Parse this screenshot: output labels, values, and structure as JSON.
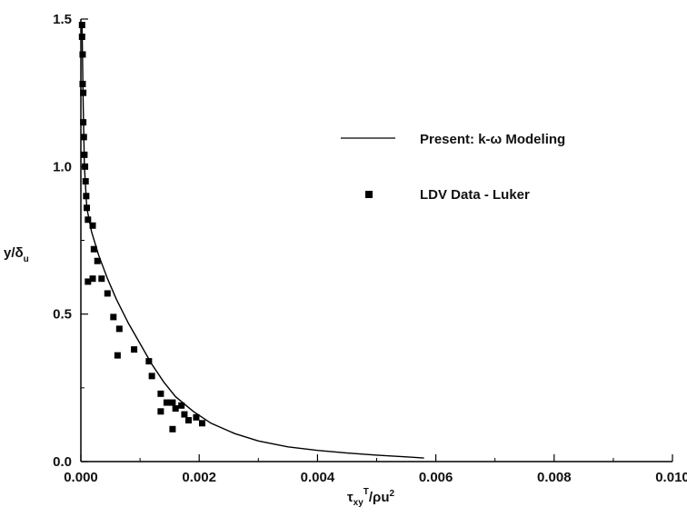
{
  "chart_data": {
    "type": "scatter",
    "xlabel": {
      "base": "τ",
      "sub": "xy",
      "sup": "T",
      "rest": "/ρu",
      "sup2": "2"
    },
    "ylabel": {
      "base": "y/δ",
      "sub": "u"
    },
    "xlim": [
      0.0,
      0.01
    ],
    "ylim": [
      0.0,
      1.5
    ],
    "x_ticks": [
      "0.000",
      "0.002",
      "0.004",
      "0.006",
      "0.008",
      "0.010"
    ],
    "y_ticks": [
      "0.0",
      "0.5",
      "1.0",
      "1.5"
    ],
    "x_tick_values": [
      0.0,
      0.002,
      0.004,
      0.006,
      0.008,
      0.01
    ],
    "y_tick_values": [
      0.0,
      0.5,
      1.0,
      1.5
    ],
    "legend_position": "upper-right",
    "series": [
      {
        "name": "Present: k-ω Modeling",
        "style": "line",
        "color": "#000000",
        "points": [
          [
            2e-05,
            1.48
          ],
          [
            4e-05,
            1.2
          ],
          [
            6e-05,
            1.0
          ],
          [
            0.0001,
            0.86
          ],
          [
            0.00018,
            0.78
          ],
          [
            0.0003,
            0.7
          ],
          [
            0.00045,
            0.62
          ],
          [
            0.0006,
            0.55
          ],
          [
            0.0008,
            0.47
          ],
          [
            0.001,
            0.4
          ],
          [
            0.0012,
            0.33
          ],
          [
            0.0014,
            0.27
          ],
          [
            0.0016,
            0.22
          ],
          [
            0.0019,
            0.17
          ],
          [
            0.0022,
            0.13
          ],
          [
            0.0026,
            0.095
          ],
          [
            0.003,
            0.07
          ],
          [
            0.0035,
            0.05
          ],
          [
            0.004,
            0.038
          ],
          [
            0.0045,
            0.029
          ],
          [
            0.005,
            0.022
          ],
          [
            0.0055,
            0.016
          ],
          [
            0.0058,
            0.012
          ]
        ]
      },
      {
        "name": "LDV Data - Luker",
        "style": "square-marker",
        "color": "#000000",
        "points": [
          [
            2e-05,
            1.48
          ],
          [
            2e-05,
            1.44
          ],
          [
            3e-05,
            1.38
          ],
          [
            3e-05,
            1.28
          ],
          [
            4e-05,
            1.25
          ],
          [
            4e-05,
            1.15
          ],
          [
            5e-05,
            1.1
          ],
          [
            6e-05,
            1.04
          ],
          [
            7e-05,
            1.0
          ],
          [
            8e-05,
            0.95
          ],
          [
            9e-05,
            0.9
          ],
          [
            0.0001,
            0.86
          ],
          [
            0.00012,
            0.82
          ],
          [
            0.0002,
            0.8
          ],
          [
            0.00022,
            0.72
          ],
          [
            0.00028,
            0.68
          ],
          [
            0.00012,
            0.61
          ],
          [
            0.0002,
            0.62
          ],
          [
            0.00035,
            0.62
          ],
          [
            0.00045,
            0.57
          ],
          [
            0.00055,
            0.49
          ],
          [
            0.00065,
            0.45
          ],
          [
            0.00062,
            0.36
          ],
          [
            0.0009,
            0.38
          ],
          [
            0.00115,
            0.34
          ],
          [
            0.0012,
            0.29
          ],
          [
            0.00135,
            0.23
          ],
          [
            0.00135,
            0.17
          ],
          [
            0.00145,
            0.2
          ],
          [
            0.00155,
            0.2
          ],
          [
            0.0016,
            0.18
          ],
          [
            0.0017,
            0.19
          ],
          [
            0.00175,
            0.16
          ],
          [
            0.00182,
            0.14
          ],
          [
            0.00195,
            0.15
          ],
          [
            0.00205,
            0.13
          ],
          [
            0.00155,
            0.11
          ]
        ]
      }
    ]
  }
}
